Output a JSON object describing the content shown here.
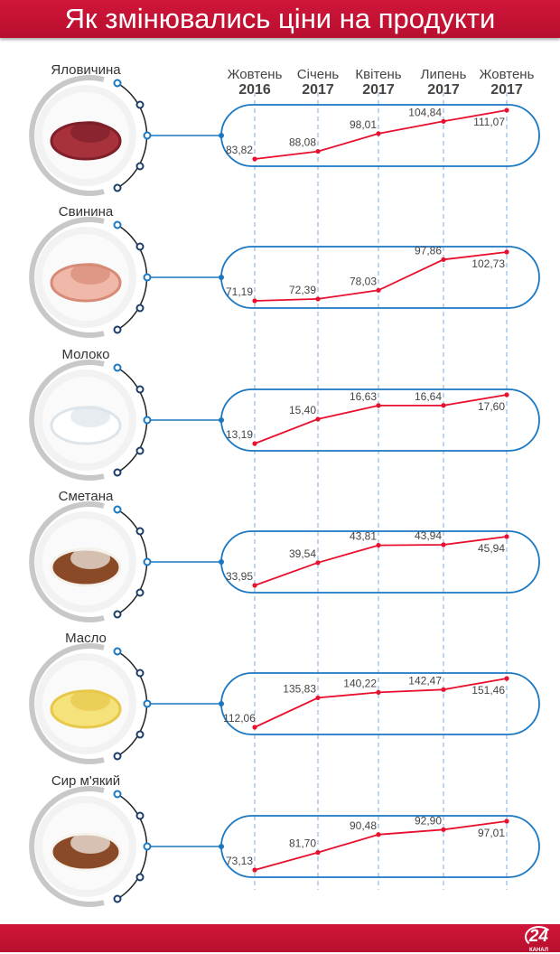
{
  "header": {
    "title": "Як змінювались ціни на продукти"
  },
  "footer": {
    "logo_number": "24",
    "logo_caption": "КАНАЛ"
  },
  "colors": {
    "brand_red": "#c8102e",
    "line": "#e8102e",
    "pill": "#1a78c2",
    "dash": "#7fa8e0"
  },
  "chart_data": {
    "type": "line",
    "categories": [
      {
        "month": "Жовтень",
        "year": "2016"
      },
      {
        "month": "Січень",
        "year": "2017"
      },
      {
        "month": "Квітень",
        "year": "2017"
      },
      {
        "month": "Липень",
        "year": "2017"
      },
      {
        "month": "Жовтень",
        "year": "2017"
      }
    ],
    "series": [
      {
        "name": "Яловичина",
        "icon": "beef-icon",
        "values": [
          83.82,
          88.08,
          98.01,
          104.84,
          111.07
        ],
        "labels": [
          "83,82",
          "88,08",
          "98,01",
          "104,84",
          "111,07"
        ]
      },
      {
        "name": "Свинина",
        "icon": "pork-icon",
        "values": [
          71.19,
          72.39,
          78.03,
          97.86,
          102.73
        ],
        "labels": [
          "71,19",
          "72,39",
          "78,03",
          "97,86",
          "102,73"
        ]
      },
      {
        "name": "Молоко",
        "icon": "milk-icon",
        "values": [
          13.19,
          15.4,
          16.63,
          16.64,
          17.6
        ],
        "labels": [
          "13,19",
          "15,40",
          "16,63",
          "16,64",
          "17,60"
        ]
      },
      {
        "name": "Сметана",
        "icon": "sour-cream-icon",
        "values": [
          33.95,
          39.54,
          43.81,
          43.94,
          45.94
        ],
        "labels": [
          "33,95",
          "39,54",
          "43,81",
          "43,94",
          "45,94"
        ]
      },
      {
        "name": "Масло",
        "icon": "butter-icon",
        "values": [
          112.06,
          135.83,
          140.22,
          142.47,
          151.46
        ],
        "labels": [
          "112,06",
          "135,83",
          "140,22",
          "142,47",
          "151,46"
        ]
      },
      {
        "name": "Сир м'який",
        "icon": "cottage-cheese-icon",
        "values": [
          73.13,
          81.7,
          90.48,
          92.9,
          97.01
        ],
        "labels": [
          "73,13",
          "81,70",
          "90,48",
          "92,90",
          "97,01"
        ]
      }
    ]
  }
}
